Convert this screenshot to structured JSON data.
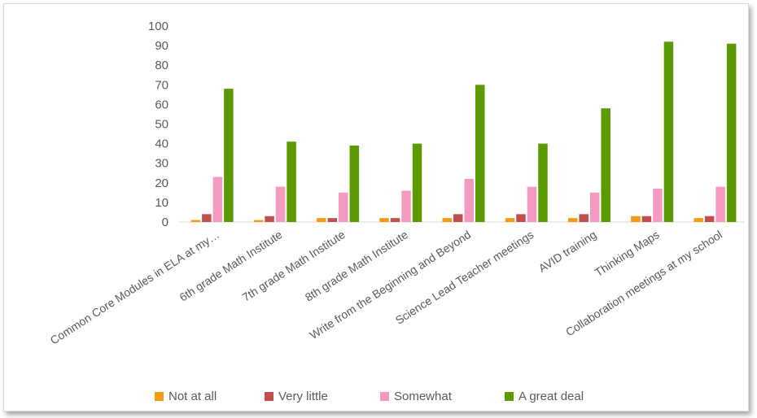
{
  "chart_data": {
    "type": "bar",
    "categories": [
      "Common Core Modules in ELA at my…",
      "6th grade Math Institute",
      "7th grade Math Institute",
      "8th grade Math Institute",
      "Write from the Beginning and Beyond",
      "Science Lead Teacher meetings",
      "AVID training",
      "Thinking Maps",
      "Collaboration meetings at my school"
    ],
    "series": [
      {
        "name": "Not at all",
        "color": "#f39c12",
        "values": [
          1,
          1,
          2,
          2,
          2,
          2,
          2,
          3,
          2
        ]
      },
      {
        "name": "Very little",
        "color": "#c0504d",
        "values": [
          4,
          3,
          2,
          2,
          4,
          4,
          4,
          3,
          3
        ]
      },
      {
        "name": "Somewhat",
        "color": "#f49ac1",
        "values": [
          23,
          18,
          15,
          16,
          22,
          18,
          15,
          17,
          18
        ]
      },
      {
        "name": "A great deal",
        "color": "#5b9a00",
        "values": [
          68,
          41,
          39,
          40,
          70,
          40,
          58,
          92,
          91
        ]
      }
    ],
    "y_ticks": [
      0,
      10,
      20,
      30,
      40,
      50,
      60,
      70,
      80,
      90,
      100
    ],
    "ylim": [
      0,
      100
    ],
    "grid": false,
    "legend_position": "bottom"
  }
}
